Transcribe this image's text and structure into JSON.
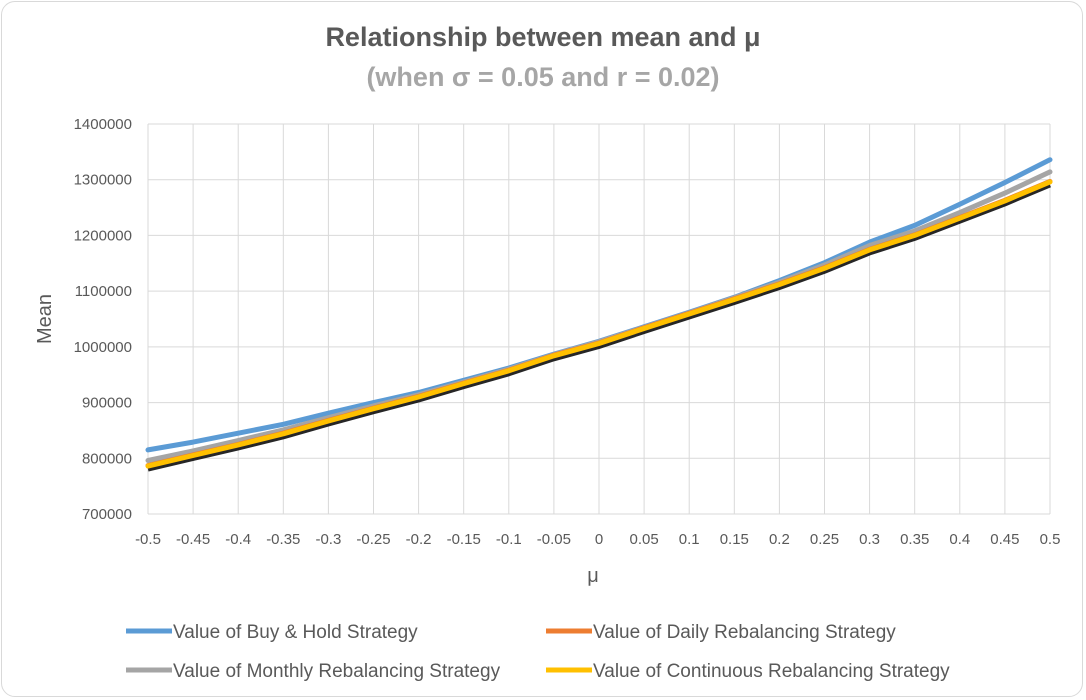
{
  "chart_data": {
    "type": "line",
    "title": "Relationship between mean and μ",
    "subtitle": "(when σ = 0.05 and r = 0.02)",
    "xlabel": "μ",
    "ylabel": "Mean",
    "x": [
      -0.5,
      -0.45,
      -0.4,
      -0.35,
      -0.3,
      -0.25,
      -0.2,
      -0.15,
      -0.1,
      -0.05,
      0,
      0.05,
      0.1,
      0.15,
      0.2,
      0.25,
      0.3,
      0.35,
      0.4,
      0.45,
      0.5
    ],
    "x_tick_labels": [
      "-0.5",
      "-0.45",
      "-0.4",
      "-0.35",
      "-0.3",
      "-0.25",
      "-0.2",
      "-0.15",
      "-0.1",
      "-0.05",
      "0",
      "0.05",
      "0.1",
      "0.15",
      "0.2",
      "0.25",
      "0.3",
      "0.35",
      "0.4",
      "0.45",
      "0.5"
    ],
    "ylim": [
      700000,
      1400000
    ],
    "y_ticks": [
      700000,
      800000,
      900000,
      1000000,
      1100000,
      1200000,
      1300000,
      1400000
    ],
    "y_tick_labels": [
      "700000",
      "800000",
      "900000",
      "1000000",
      "1100000",
      "1200000",
      "1300000",
      "1400000"
    ],
    "grid": true,
    "legend_position": "bottom",
    "series": [
      {
        "name": "Value of Buy & Hold Strategy",
        "color": "#5b9bd5",
        "values": [
          815000,
          829000,
          845000,
          861000,
          881000,
          900000,
          918000,
          940000,
          962000,
          987000,
          1010000,
          1036000,
          1062000,
          1089000,
          1119000,
          1151000,
          1188000,
          1218000,
          1256000,
          1295000,
          1336000
        ]
      },
      {
        "name": "Value of Daily Rebalancing Strategy",
        "color": "#ed7d31",
        "values": [
          787000,
          806000,
          825000,
          845000,
          868000,
          890000,
          911000,
          935000,
          958000,
          985000,
          1007000,
          1034000,
          1060000,
          1086000,
          1113000,
          1142000,
          1175000,
          1201000,
          1232000,
          1263000,
          1297000
        ]
      },
      {
        "name": "Value of Monthly Rebalancing Strategy",
        "color": "#a5a5a5",
        "values": [
          796000,
          813000,
          832000,
          851000,
          873000,
          894000,
          914000,
          937000,
          960000,
          986000,
          1009000,
          1035000,
          1061000,
          1088000,
          1116000,
          1147000,
          1182000,
          1208000,
          1241000,
          1276000,
          1314000
        ]
      },
      {
        "name": "Value of Continuous Rebalancing Strategy",
        "color": "#ffc000",
        "values": [
          786000,
          805000,
          824000,
          844000,
          867000,
          889000,
          910000,
          934000,
          957000,
          984000,
          1006000,
          1033000,
          1059000,
          1085000,
          1112000,
          1141000,
          1174000,
          1200000,
          1231000,
          1262000,
          1296000
        ]
      }
    ]
  }
}
